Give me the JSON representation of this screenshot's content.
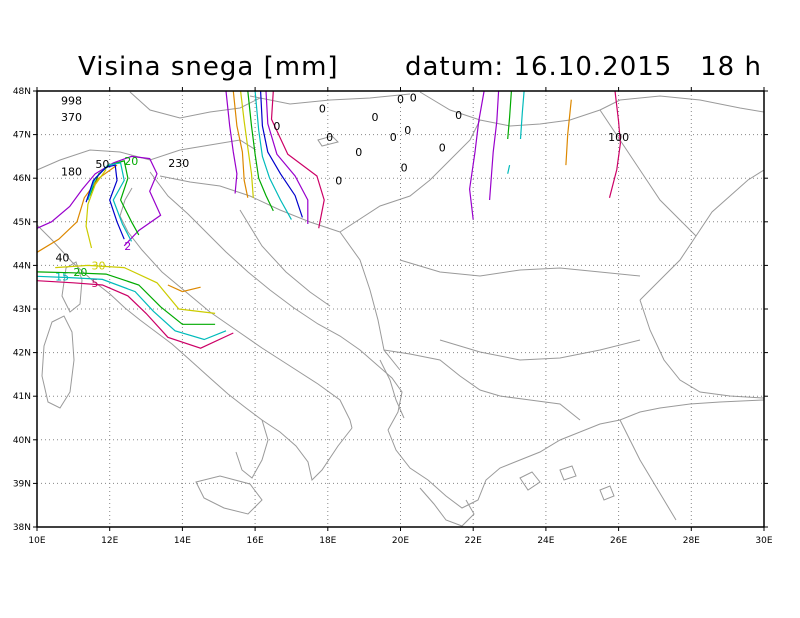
{
  "title": {
    "parameter": "Visina snega [mm]",
    "date_label": "datum:",
    "date": "16.10.2015",
    "hour": "18 h"
  },
  "axes": {
    "lon_range": [
      10,
      30
    ],
    "lat_range": [
      38,
      48
    ],
    "lon_ticks": [
      10,
      12,
      14,
      16,
      18,
      20,
      22,
      24,
      26,
      28,
      30
    ],
    "lat_ticks": [
      38,
      39,
      40,
      41,
      42,
      43,
      44,
      45,
      46,
      47,
      48
    ],
    "lon_tick_labels": [
      "10E",
      "12E",
      "14E",
      "16E",
      "18E",
      "20E",
      "22E",
      "24E",
      "26E",
      "28E",
      "30E"
    ],
    "lat_tick_labels": [
      "38N",
      "39N",
      "40N",
      "41N",
      "42N",
      "43N",
      "44N",
      "45N",
      "46N",
      "47N",
      "48N"
    ],
    "grid": true
  },
  "point_labels": [
    {
      "lon": 10.95,
      "lat": 47.78,
      "text": "998"
    },
    {
      "lon": 10.95,
      "lat": 47.4,
      "text": "370"
    },
    {
      "lon": 10.95,
      "lat": 46.15,
      "text": "180"
    },
    {
      "lon": 11.8,
      "lat": 46.32,
      "text": "50"
    },
    {
      "lon": 13.9,
      "lat": 46.35,
      "text": "230"
    },
    {
      "lon": 10.7,
      "lat": 44.18,
      "text": "40"
    },
    {
      "lon": 16.6,
      "lat": 47.2,
      "text": "0"
    },
    {
      "lon": 17.85,
      "lat": 47.6,
      "text": "0"
    },
    {
      "lon": 18.05,
      "lat": 46.95,
      "text": "0"
    },
    {
      "lon": 19.3,
      "lat": 47.4,
      "text": "0"
    },
    {
      "lon": 20.0,
      "lat": 47.82,
      "text": "0"
    },
    {
      "lon": 20.35,
      "lat": 47.85,
      "text": "0"
    },
    {
      "lon": 20.2,
      "lat": 47.1,
      "text": "0"
    },
    {
      "lon": 19.8,
      "lat": 46.95,
      "text": "0"
    },
    {
      "lon": 18.85,
      "lat": 46.6,
      "text": "0"
    },
    {
      "lon": 21.6,
      "lat": 47.45,
      "text": "0"
    },
    {
      "lon": 21.15,
      "lat": 46.7,
      "text": "0"
    },
    {
      "lon": 20.1,
      "lat": 46.25,
      "text": "0"
    },
    {
      "lon": 18.3,
      "lat": 45.95,
      "text": "0"
    },
    {
      "lon": 26.0,
      "lat": 46.95,
      "text": "100"
    }
  ],
  "contours": [
    {
      "level": "2",
      "color": "#9900cc",
      "label": "2",
      "label_at": [
        12.4,
        44.45
      ],
      "points": [
        [
          10.0,
          44.85
        ],
        [
          10.4,
          45.0
        ],
        [
          10.9,
          45.35
        ],
        [
          11.25,
          45.75
        ],
        [
          11.6,
          46.1
        ],
        [
          12.1,
          46.35
        ],
        [
          12.6,
          46.5
        ],
        [
          13.1,
          46.45
        ],
        [
          13.3,
          46.1
        ],
        [
          13.1,
          45.7
        ],
        [
          13.4,
          45.15
        ],
        [
          12.8,
          44.8
        ],
        [
          12.4,
          44.45
        ]
      ]
    },
    {
      "level": "5",
      "color": "#cc0066",
      "label": "5",
      "label_at": [
        11.5,
        43.6
      ],
      "points": [
        [
          10.0,
          43.65
        ],
        [
          11.0,
          43.6
        ],
        [
          11.8,
          43.55
        ],
        [
          12.5,
          43.3
        ],
        [
          13.0,
          42.9
        ],
        [
          13.6,
          42.35
        ],
        [
          14.5,
          42.1
        ],
        [
          15.4,
          42.45
        ]
      ]
    },
    {
      "level": "15",
      "color": "#00bbbb",
      "label": "15",
      "label_at": [
        10.5,
        43.75
      ],
      "points": [
        [
          10.0,
          43.75
        ],
        [
          10.9,
          43.72
        ],
        [
          11.8,
          43.68
        ],
        [
          12.7,
          43.4
        ],
        [
          13.2,
          42.95
        ],
        [
          13.8,
          42.5
        ],
        [
          14.6,
          42.3
        ],
        [
          15.2,
          42.5
        ]
      ]
    },
    {
      "level": "20",
      "color": "#00aa00",
      "label": "20",
      "label_at": [
        11.0,
        43.85
      ],
      "points": [
        [
          10.0,
          43.85
        ],
        [
          11.0,
          43.83
        ],
        [
          11.9,
          43.8
        ],
        [
          12.8,
          43.55
        ],
        [
          13.4,
          43.05
        ],
        [
          14.0,
          42.65
        ],
        [
          14.9,
          42.65
        ]
      ]
    },
    {
      "level": "30",
      "color": "#cccc00",
      "label": "30",
      "label_at": [
        11.5,
        44.0
      ],
      "points": [
        [
          10.5,
          43.95
        ],
        [
          11.4,
          44.0
        ],
        [
          12.4,
          43.95
        ],
        [
          13.3,
          43.6
        ],
        [
          13.9,
          43.0
        ],
        [
          14.9,
          42.9
        ]
      ]
    },
    {
      "level": "20",
      "color": "#00aa00",
      "label": "20",
      "label_at": [
        12.4,
        46.4
      ],
      "points": [
        [
          11.45,
          45.6
        ],
        [
          11.7,
          46.1
        ],
        [
          12.0,
          46.3
        ],
        [
          12.4,
          46.4
        ],
        [
          12.5,
          46.0
        ],
        [
          12.3,
          45.5
        ],
        [
          12.6,
          45.0
        ],
        [
          12.8,
          44.7
        ]
      ]
    },
    {
      "level": "60",
      "color": "#dd8800",
      "label": "",
      "label_at": [
        0,
        0
      ],
      "points": [
        [
          10.0,
          44.3
        ],
        [
          10.6,
          44.6
        ],
        [
          11.1,
          45.0
        ],
        [
          11.3,
          45.55
        ],
        [
          11.7,
          46.0
        ],
        [
          12.2,
          46.3
        ]
      ]
    },
    {
      "level": "60b",
      "color": "#dd8800",
      "label": "",
      "label_at": [
        0,
        0
      ],
      "points": [
        [
          13.6,
          43.55
        ],
        [
          14.0,
          43.4
        ],
        [
          14.5,
          43.5
        ]
      ]
    },
    {
      "level": "40",
      "color": "#cccc00",
      "label": "",
      "label_at": [
        0,
        0
      ],
      "points": [
        [
          11.5,
          44.4
        ],
        [
          11.35,
          44.9
        ],
        [
          11.4,
          45.4
        ],
        [
          11.6,
          45.85
        ],
        [
          11.9,
          46.2
        ]
      ]
    },
    {
      "level": "c1",
      "color": "#00bbbb",
      "label": "",
      "label_at": [
        0,
        0
      ],
      "points": [
        [
          11.4,
          45.5
        ],
        [
          11.6,
          46.0
        ],
        [
          11.95,
          46.3
        ],
        [
          12.3,
          46.35
        ],
        [
          12.4,
          45.95
        ],
        [
          12.1,
          45.5
        ],
        [
          12.35,
          44.95
        ],
        [
          12.6,
          44.55
        ]
      ]
    },
    {
      "level": "c2",
      "color": "#0000cc",
      "label": "",
      "label_at": [
        0,
        0
      ],
      "points": [
        [
          11.35,
          45.45
        ],
        [
          11.55,
          45.95
        ],
        [
          11.9,
          46.25
        ],
        [
          12.15,
          46.3
        ],
        [
          12.2,
          45.95
        ],
        [
          12.0,
          45.5
        ],
        [
          12.2,
          45.0
        ],
        [
          12.4,
          44.6
        ]
      ]
    },
    {
      "level": "e1",
      "color": "#dd8800",
      "label": "",
      "label_at": [
        0,
        0
      ],
      "points": [
        [
          15.4,
          48.0
        ],
        [
          15.5,
          47.2
        ],
        [
          15.65,
          46.6
        ],
        [
          15.7,
          45.95
        ],
        [
          15.8,
          45.55
        ]
      ]
    },
    {
      "level": "e2",
      "color": "#cccc00",
      "label": "",
      "label_at": [
        0,
        0
      ],
      "points": [
        [
          15.6,
          48.0
        ],
        [
          15.7,
          47.3
        ],
        [
          15.8,
          46.7
        ],
        [
          15.9,
          46.1
        ],
        [
          15.95,
          45.55
        ]
      ]
    },
    {
      "level": "e3",
      "color": "#00aa00",
      "label": "",
      "label_at": [
        0,
        0
      ],
      "points": [
        [
          15.8,
          48.0
        ],
        [
          15.9,
          47.2
        ],
        [
          16.0,
          46.55
        ],
        [
          16.1,
          46.0
        ],
        [
          16.3,
          45.6
        ],
        [
          16.5,
          45.25
        ]
      ]
    },
    {
      "level": "e4",
      "color": "#00bbbb",
      "label": "",
      "label_at": [
        0,
        0
      ],
      "points": [
        [
          16.0,
          48.0
        ],
        [
          16.1,
          47.1
        ],
        [
          16.2,
          46.5
        ],
        [
          16.4,
          46.0
        ],
        [
          16.7,
          45.5
        ],
        [
          17.0,
          45.05
        ]
      ]
    },
    {
      "level": "e5",
      "color": "#0000cc",
      "label": "",
      "label_at": [
        0,
        0
      ],
      "points": [
        [
          16.15,
          48.0
        ],
        [
          16.2,
          47.2
        ],
        [
          16.35,
          46.6
        ],
        [
          16.7,
          46.1
        ],
        [
          17.1,
          45.6
        ],
        [
          17.3,
          45.1
        ]
      ]
    },
    {
      "level": "e6",
      "color": "#9900cc",
      "label": "",
      "label_at": [
        0,
        0
      ],
      "points": [
        [
          16.3,
          48.0
        ],
        [
          16.35,
          47.25
        ],
        [
          16.6,
          46.55
        ],
        [
          17.1,
          46.05
        ],
        [
          17.45,
          45.5
        ],
        [
          17.45,
          44.95
        ]
      ]
    },
    {
      "level": "e7",
      "color": "#cc0066",
      "label": "",
      "label_at": [
        0,
        0
      ],
      "points": [
        [
          16.5,
          48.0
        ],
        [
          16.45,
          47.35
        ],
        [
          16.9,
          46.55
        ],
        [
          17.7,
          46.05
        ],
        [
          17.9,
          45.5
        ],
        [
          17.75,
          44.85
        ]
      ]
    },
    {
      "level": "e8",
      "color": "#9900cc",
      "label": "",
      "label_at": [
        0,
        0
      ],
      "points": [
        [
          15.2,
          48.0
        ],
        [
          15.3,
          47.2
        ],
        [
          15.4,
          46.6
        ],
        [
          15.5,
          46.1
        ],
        [
          15.45,
          45.65
        ]
      ]
    },
    {
      "level": "w1",
      "color": "#9900cc",
      "label": "",
      "label_at": [
        0,
        0
      ],
      "points": [
        [
          22.3,
          48.0
        ],
        [
          22.15,
          47.3
        ],
        [
          22.05,
          46.6
        ],
        [
          21.9,
          45.75
        ],
        [
          22.0,
          45.05
        ]
      ]
    },
    {
      "level": "w2",
      "color": "#9900cc",
      "label": "",
      "label_at": [
        0,
        0
      ],
      "points": [
        [
          22.7,
          48.0
        ],
        [
          22.65,
          47.3
        ],
        [
          22.55,
          46.6
        ],
        [
          22.45,
          45.5
        ]
      ]
    },
    {
      "level": "w3",
      "color": "#00aa00",
      "label": "",
      "label_at": [
        0,
        0
      ],
      "points": [
        [
          23.05,
          48.0
        ],
        [
          23.0,
          47.4
        ],
        [
          22.95,
          46.9
        ]
      ]
    },
    {
      "level": "w4",
      "color": "#00bbbb",
      "label": "",
      "label_at": [
        0,
        0
      ],
      "points": [
        [
          23.4,
          48.0
        ],
        [
          23.35,
          47.5
        ],
        [
          23.3,
          46.9
        ]
      ]
    },
    {
      "level": "w5",
      "color": "#00bbbb",
      "label": "",
      "label_at": [
        0,
        0
      ],
      "points": [
        [
          23.0,
          46.3
        ],
        [
          22.95,
          46.1
        ]
      ]
    },
    {
      "level": "w6",
      "color": "#dd8800",
      "label": "",
      "label_at": [
        0,
        0
      ],
      "points": [
        [
          24.7,
          47.8
        ],
        [
          24.6,
          47.0
        ],
        [
          24.55,
          46.3
        ]
      ]
    },
    {
      "level": "w7",
      "color": "#cc0066",
      "label": "",
      "label_at": [
        0,
        0
      ],
      "points": [
        [
          25.9,
          48.0
        ],
        [
          26.0,
          47.3
        ],
        [
          26.05,
          46.8
        ],
        [
          25.95,
          46.2
        ],
        [
          25.75,
          45.55
        ]
      ]
    }
  ],
  "colors": {
    "frame": "#000000",
    "grid": "#888888",
    "coast": "#9a9a9a"
  }
}
